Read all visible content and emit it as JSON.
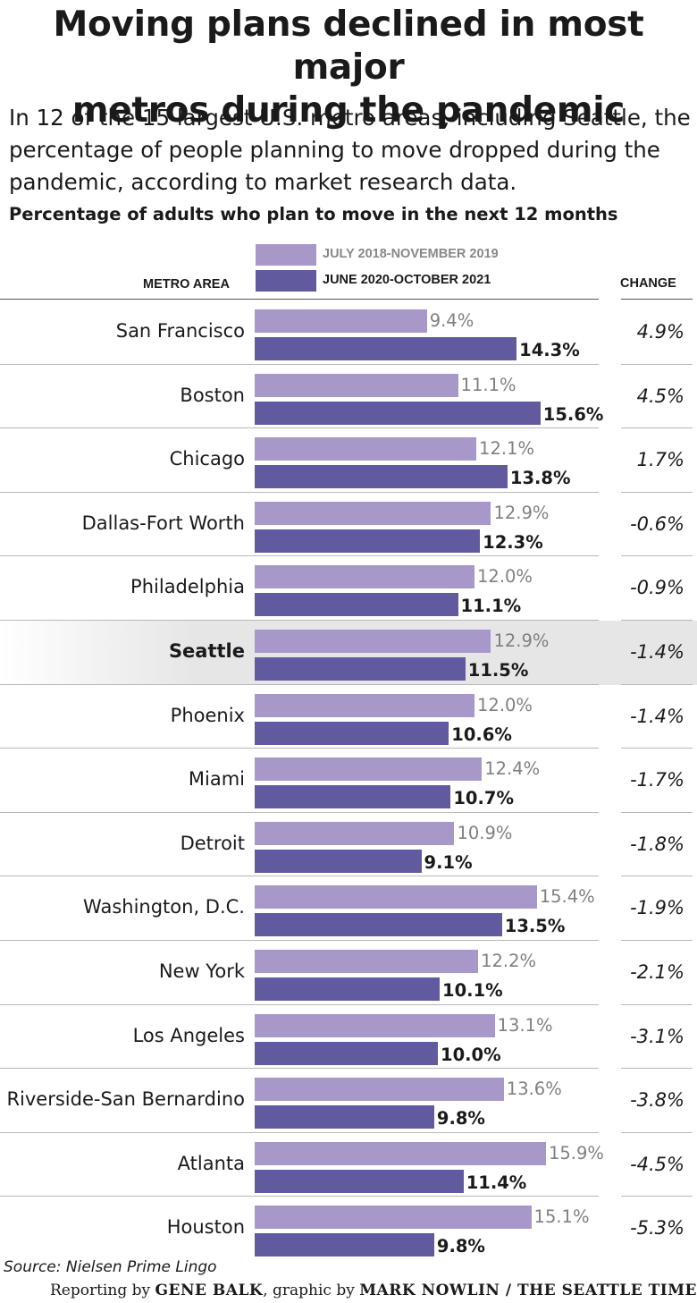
{
  "header": {
    "title_line1": "Moving plans declined in most major",
    "title_line2": "metros during the pandemic",
    "subtitle_line1": "In 12 of the 15 largest U.S. metro areas, including Seattle, the",
    "subtitle_line2": "percentage of people planning to move dropped during the",
    "subtitle_line3": "pandemic, according to market research data."
  },
  "colors": {
    "series_a": "#a898c9",
    "series_b": "#625a9e",
    "highlight_band": "#e6e6e6"
  },
  "chart_data": {
    "type": "bar",
    "orientation": "horizontal",
    "title": "Percentage of adults who plan to move in the next 12 months",
    "column_headers": {
      "metro": "METRO AREA",
      "change": "CHANGE"
    },
    "categories": [
      "San Francisco",
      "Boston",
      "Chicago",
      "Dallas-Fort Worth",
      "Philadelphia",
      "Seattle",
      "Phoenix",
      "Miami",
      "Detroit",
      "Washington, D.C.",
      "New York",
      "Los Angeles",
      "Riverside-San Bernardino",
      "Atlanta",
      "Houston"
    ],
    "highlighted_category": "Seattle",
    "series": [
      {
        "name": "JULY 2018-NOVEMBER 2019",
        "values": [
          9.4,
          11.1,
          12.1,
          12.9,
          12.0,
          12.9,
          12.0,
          12.4,
          10.9,
          15.4,
          12.2,
          13.1,
          13.6,
          15.9,
          15.1
        ]
      },
      {
        "name": "JUNE 2020-OCTOBER 2021",
        "values": [
          14.3,
          15.6,
          13.8,
          12.3,
          11.1,
          11.5,
          10.6,
          10.7,
          9.1,
          13.5,
          10.1,
          10.0,
          9.8,
          11.4,
          9.8
        ]
      }
    ],
    "value_labels_a": [
      "9.4%",
      "11.1%",
      "12.1%",
      "12.9%",
      "12.0%",
      "12.9%",
      "12.0%",
      "12.4%",
      "10.9%",
      "15.4%",
      "12.2%",
      "13.1%",
      "13.6%",
      "15.9%",
      "15.1%"
    ],
    "value_labels_b": [
      "14.3%",
      "15.6%",
      "13.8%",
      "12.3%",
      "11.1%",
      "11.5%",
      "10.6%",
      "10.7%",
      "9.1%",
      "13.5%",
      "10.1%",
      "10.0%",
      "9.8%",
      "11.4%",
      "9.8%"
    ],
    "change_labels": [
      "4.9%",
      "4.5%",
      "1.7%",
      "-0.6%",
      "-0.9%",
      "-1.4%",
      "-1.4%",
      "-1.7%",
      "-1.8%",
      "-1.9%",
      "-2.1%",
      "-3.1%",
      "-3.8%",
      "-4.5%",
      "-5.3%"
    ],
    "xlim": [
      0,
      16
    ],
    "grid": false,
    "legend_position": "top"
  },
  "footer": {
    "source": "Source: Nielsen Prime Lingo",
    "credit_prefix": "Reporting by",
    "reporter": "GENE BALK",
    "credit_mid": ", graphic by",
    "graphic": "MARK NOWLIN / THE SEATTLE TIMES"
  }
}
